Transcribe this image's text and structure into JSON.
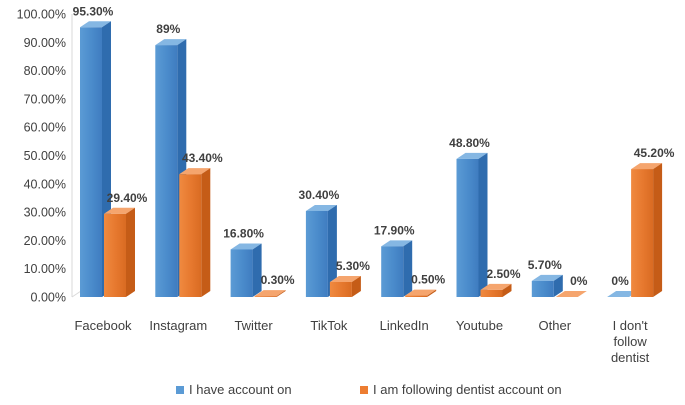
{
  "chart_data": {
    "type": "bar",
    "categories": [
      "Facebook",
      "Instagram",
      "Twitter",
      "TikTok",
      "LinkedIn",
      "Youtube",
      "Other",
      "I don't follow dentist"
    ],
    "category_lines": [
      [
        "Facebook"
      ],
      [
        "Instagram"
      ],
      [
        "Twitter"
      ],
      [
        "TikTok"
      ],
      [
        "LinkedIn"
      ],
      [
        "Youtube"
      ],
      [
        "Other"
      ],
      [
        "I don't",
        "follow",
        "dentist"
      ]
    ],
    "series": [
      {
        "name": "I have account on",
        "values": [
          95.3,
          89,
          16.8,
          30.4,
          17.9,
          48.8,
          5.7,
          0
        ],
        "labels": [
          "95.30%",
          "89%",
          "16.80%",
          "30.40%",
          "17.90%",
          "48.80%",
          "5.70%",
          "0%"
        ],
        "color": "#5B9BD5"
      },
      {
        "name": "I am following dentist account on",
        "values": [
          29.4,
          43.4,
          0.3,
          5.3,
          0.5,
          2.5,
          0,
          45.2
        ],
        "labels": [
          "29.40%",
          "43.40%",
          "0.30%",
          "5.30%",
          "0.50%",
          "2.50%",
          "0%",
          "45.20%"
        ],
        "color": "#ED7D31"
      }
    ],
    "yticks": [
      "0.00%",
      "10.00%",
      "20.00%",
      "30.00%",
      "40.00%",
      "50.00%",
      "60.00%",
      "70.00%",
      "80.00%",
      "90.00%",
      "100.00%"
    ],
    "ylim": [
      0,
      100
    ],
    "grid": false,
    "legend_position": "bottom",
    "style": "3d-clustered-column"
  }
}
